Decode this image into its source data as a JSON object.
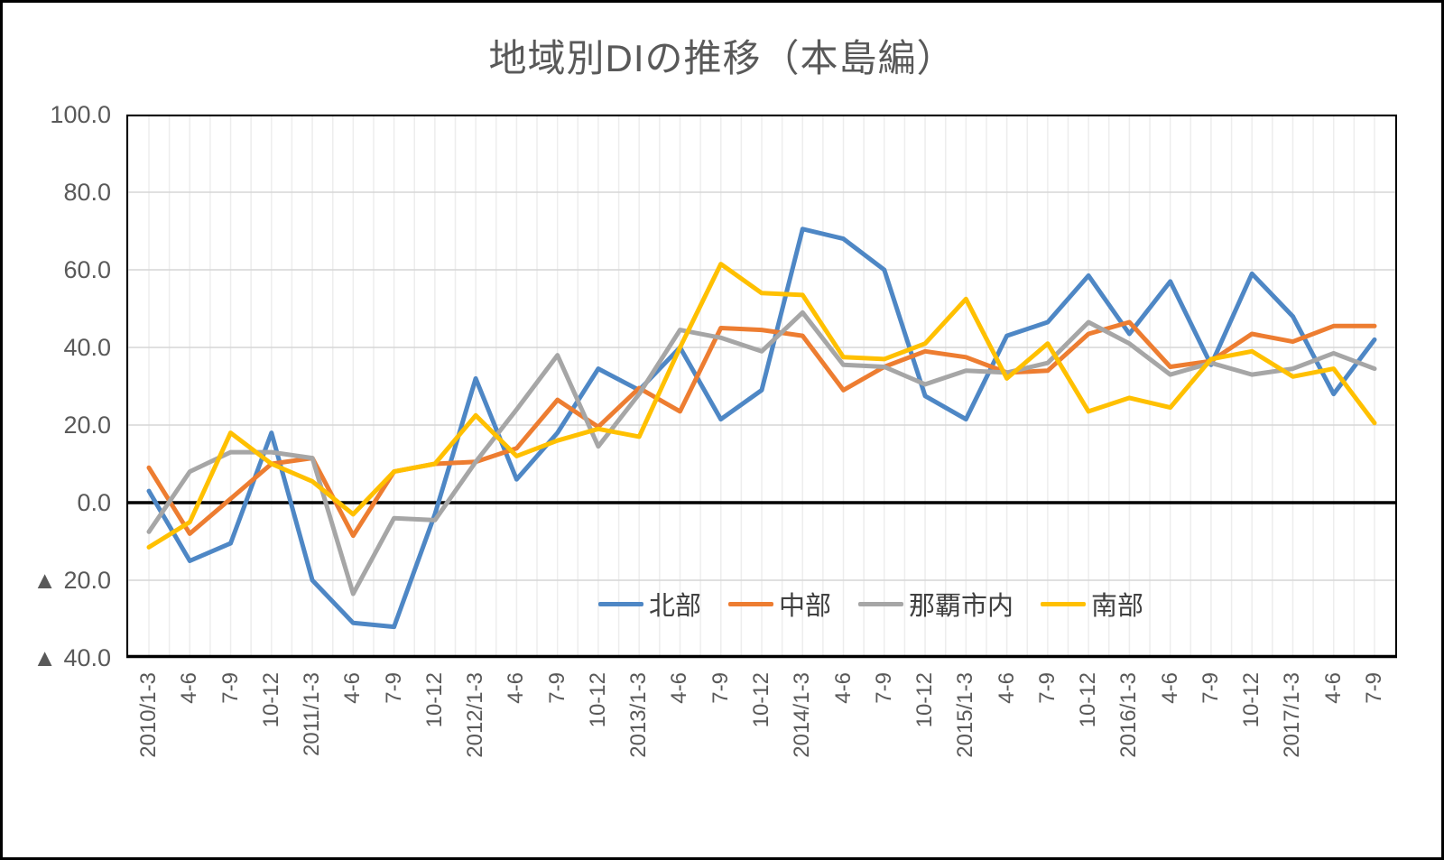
{
  "title": "地域別DIの推移（本島編）",
  "chart_data": {
    "type": "line",
    "title": "地域別DIの推移（本島編）",
    "xlabel": "",
    "ylabel": "",
    "ylim": [
      -40,
      100
    ],
    "ytick_step": 20,
    "grid": true,
    "legend_position": "inside-bottom-center",
    "zero_line": true,
    "yticks": [
      {
        "value": 100,
        "label": "100.0"
      },
      {
        "value": 80,
        "label": "80.0"
      },
      {
        "value": 60,
        "label": "60.0"
      },
      {
        "value": 40,
        "label": "40.0"
      },
      {
        "value": 20,
        "label": "20.0"
      },
      {
        "value": 0,
        "label": "0.0"
      },
      {
        "value": -20,
        "label": "▲ 20.0"
      },
      {
        "value": -40,
        "label": "▲ 40.0"
      }
    ],
    "categories": [
      "2010/1-3",
      "4-6",
      "7-9",
      "10-12",
      "2011/1-3",
      "4-6",
      "7-9",
      "10-12",
      "2012/1-3",
      "4-6",
      "7-9",
      "10-12",
      "2013/1-3",
      "4-6",
      "7-9",
      "10-12",
      "2014/1-3",
      "4-6",
      "7-9",
      "10-12",
      "2015/1-3",
      "4-6",
      "7-9",
      "10-12",
      "2016/1-3",
      "4-6",
      "7-9",
      "10-12",
      "2017/1-3",
      "4-6",
      "7-9"
    ],
    "series": [
      {
        "name": "北部",
        "color": "#4E87C5",
        "values": [
          3,
          -15,
          -10.5,
          18,
          -20,
          -31,
          -32,
          -3,
          32,
          6,
          18,
          34.5,
          29,
          40,
          21.5,
          29,
          70.5,
          68,
          60,
          27.5,
          21.5,
          43,
          46.5,
          58.5,
          43.5,
          57,
          35.5,
          59,
          48,
          28,
          42
        ]
      },
      {
        "name": "中部",
        "color": "#ED7D31",
        "values": [
          9,
          -8,
          1,
          10,
          11.5,
          -8.5,
          8,
          10,
          10.5,
          14,
          26.5,
          19.5,
          29.5,
          23.5,
          45,
          44.5,
          43,
          29,
          35,
          39,
          37.5,
          33.5,
          34,
          43.5,
          46.5,
          35,
          36.5,
          43.5,
          41.5,
          45.5,
          45.5
        ]
      },
      {
        "name": "那覇市内",
        "color": "#A6A6A6",
        "values": [
          -7.5,
          8,
          13,
          13,
          11.5,
          -23.5,
          -4,
          -4.5,
          10.5,
          24,
          38,
          14.5,
          28,
          44.5,
          42.5,
          39,
          49,
          35.5,
          35,
          30.5,
          34,
          33.5,
          36,
          46.5,
          41,
          33,
          36,
          33,
          34.5,
          38.5,
          34.5
        ]
      },
      {
        "name": "南部",
        "color": "#FFC000",
        "values": [
          -11.5,
          -5,
          18,
          10,
          5.5,
          -3,
          8,
          10,
          22.5,
          12,
          16,
          19,
          17,
          40,
          61.5,
          54,
          53.5,
          37.5,
          37,
          41,
          52.5,
          32,
          41,
          23.5,
          27,
          24.5,
          37,
          39,
          32.5,
          34.5,
          20.5
        ]
      }
    ]
  }
}
